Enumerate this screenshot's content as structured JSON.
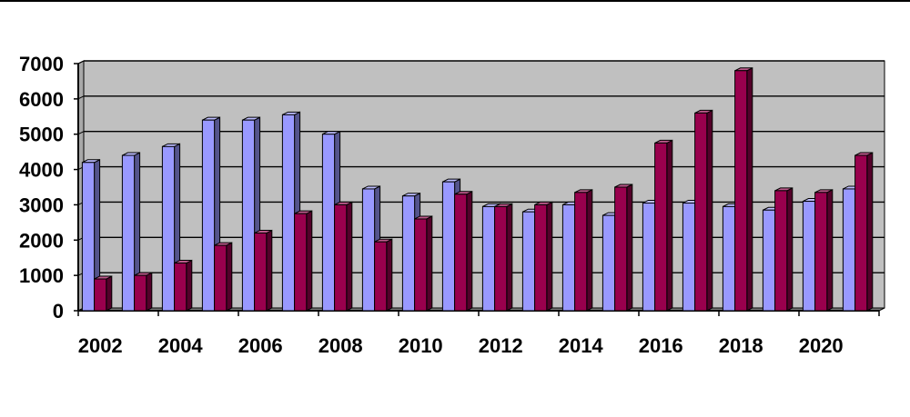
{
  "chart_data": {
    "type": "bar",
    "title": "",
    "xlabel": "",
    "ylabel": "",
    "ylim": [
      0,
      7000
    ],
    "y_ticks": [
      "0",
      "1000",
      "2000",
      "3000",
      "4000",
      "5000",
      "6000",
      "7000"
    ],
    "grid": true,
    "style": "3d-clustered",
    "categories": [
      "2002",
      "2003",
      "2004",
      "2005",
      "2006",
      "2007",
      "2008",
      "2009",
      "2010",
      "2011",
      "2012",
      "2013",
      "2014",
      "2015",
      "2016",
      "2017",
      "2018",
      "2019",
      "2020",
      "2021"
    ],
    "x_tick_labels": [
      "2002",
      "2004",
      "2006",
      "2008",
      "2010",
      "2012",
      "2014",
      "2016",
      "2018",
      "2020"
    ],
    "series": [
      {
        "color": "#9999ff",
        "values": [
          4200,
          4400,
          4650,
          5400,
          5400,
          5550,
          5000,
          3450,
          3250,
          3650,
          2950,
          2800,
          3000,
          2700,
          3050,
          3050,
          2950,
          2850,
          3100,
          3450
        ]
      },
      {
        "color": "#99004d",
        "values": [
          900,
          1000,
          1350,
          1850,
          2200,
          2750,
          3000,
          1950,
          2600,
          3300,
          2950,
          3000,
          3350,
          3500,
          4750,
          5600,
          6800,
          3400,
          3350,
          4400
        ]
      }
    ],
    "colors": {
      "plot_background": "#c0c0c0",
      "gridline": "#000000"
    }
  }
}
